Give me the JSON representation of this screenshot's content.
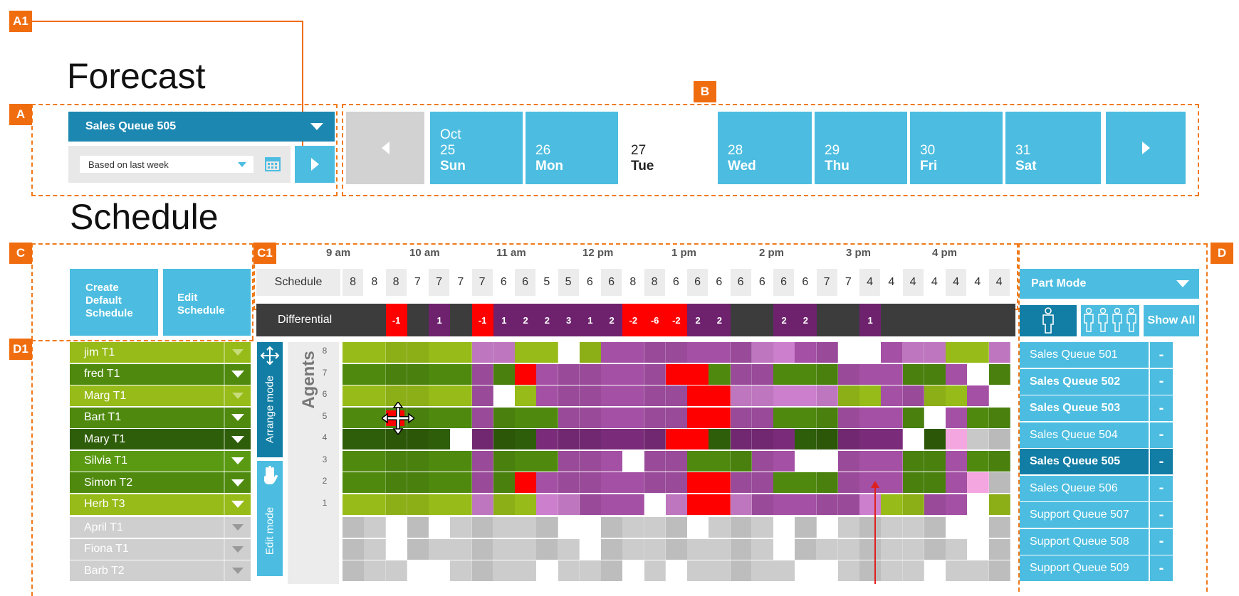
{
  "annotations": [
    "A1",
    "A",
    "B",
    "C",
    "C1",
    "D",
    "D1"
  ],
  "forecast": {
    "title": "Forecast",
    "queue_select": "Sales Queue 505",
    "basis_select": "Based on last week",
    "calendar_icon": "calendar-icon",
    "go_icon": "chevron-right-icon",
    "days": [
      {
        "month": "Oct",
        "num": "25",
        "name": "Sun",
        "selected": false
      },
      {
        "month": "",
        "num": "26",
        "name": "Mon",
        "selected": false
      },
      {
        "month": "",
        "num": "27",
        "name": "Tue",
        "selected": true
      },
      {
        "month": "",
        "num": "28",
        "name": "Wed",
        "selected": false
      },
      {
        "month": "",
        "num": "29",
        "name": "Thu",
        "selected": false
      },
      {
        "month": "",
        "num": "30",
        "name": "Fri",
        "selected": false
      },
      {
        "month": "",
        "num": "31",
        "name": "Sat",
        "selected": false
      }
    ]
  },
  "schedule": {
    "title": "Schedule",
    "create_default": "Create Default Schedule",
    "edit_schedule": "Edit Schedule",
    "hours": [
      "9 am",
      "10 am",
      "11 am",
      "12 pm",
      "1 pm",
      "2 pm",
      "3 pm",
      "4 pm"
    ],
    "schedule_label": "Schedule",
    "schedule_values": [
      "8",
      "8",
      "8",
      "7",
      "7",
      "7",
      "7",
      "6",
      "6",
      "5",
      "5",
      "6",
      "6",
      "8",
      "8",
      "6",
      "6",
      "6",
      "6",
      "6",
      "6",
      "6",
      "7",
      "7",
      "4",
      "4",
      "4",
      "4",
      "4",
      "4",
      "4"
    ],
    "differential_label": "Differential",
    "differential_values": [
      "",
      "",
      "-1",
      "",
      "1",
      "",
      "-1",
      "1",
      "2",
      "2",
      "3",
      "1",
      "2",
      "-2",
      "-6",
      "-2",
      "2",
      "2",
      "",
      "",
      "2",
      "2",
      "",
      "",
      "1",
      "",
      "",
      "",
      "",
      "",
      ""
    ],
    "agents_label": "Agents",
    "arrange_mode": "Arrange mode",
    "edit_mode": "Edit mode",
    "row_numbers": [
      "8",
      "7",
      "6",
      "5",
      "4",
      "3",
      "2",
      "1"
    ],
    "agents": [
      {
        "name": "jim  T1",
        "active": true
      },
      {
        "name": "fred  T1",
        "active": true
      },
      {
        "name": "Marg  T1",
        "active": true
      },
      {
        "name": "Bart  T1",
        "active": true
      },
      {
        "name": "Mary  T1",
        "active": true
      },
      {
        "name": "Silvia  T1",
        "active": true
      },
      {
        "name": "Simon  T2",
        "active": true
      },
      {
        "name": "Herb  T3",
        "active": true
      },
      {
        "name": "April  T1",
        "active": false
      },
      {
        "name": "Fiona  T1",
        "active": false
      },
      {
        "name": "Barb  T2",
        "active": false
      }
    ]
  },
  "queues_panel": {
    "mode_select": "Part Mode",
    "show_all": "Show All",
    "queues": [
      {
        "name": "Sales Queue 501",
        "bold": false,
        "selected": false
      },
      {
        "name": "Sales Queue 502",
        "bold": true,
        "selected": false
      },
      {
        "name": "Sales Queue 503",
        "bold": true,
        "selected": false
      },
      {
        "name": "Sales Queue 504",
        "bold": false,
        "selected": false
      },
      {
        "name": "Sales Queue 505",
        "bold": true,
        "selected": true
      },
      {
        "name": "Sales Queue 506",
        "bold": false,
        "selected": false
      },
      {
        "name": "Support Queue 507",
        "bold": false,
        "selected": false
      },
      {
        "name": "Support Queue 508",
        "bold": false,
        "selected": false
      },
      {
        "name": "Support Queue 509",
        "bold": false,
        "selected": false
      }
    ],
    "minus_label": "-"
  },
  "colors": {
    "accent": "#4cbde0",
    "accent_dark": "#127ea5",
    "annotation": "#f06d0f",
    "green": "#5a8f10",
    "green_light": "#97bb18",
    "purple": "#7a2b7a",
    "pink": "#cc7fcc",
    "red": "#ff0000",
    "grey": "#c8c8c8"
  }
}
